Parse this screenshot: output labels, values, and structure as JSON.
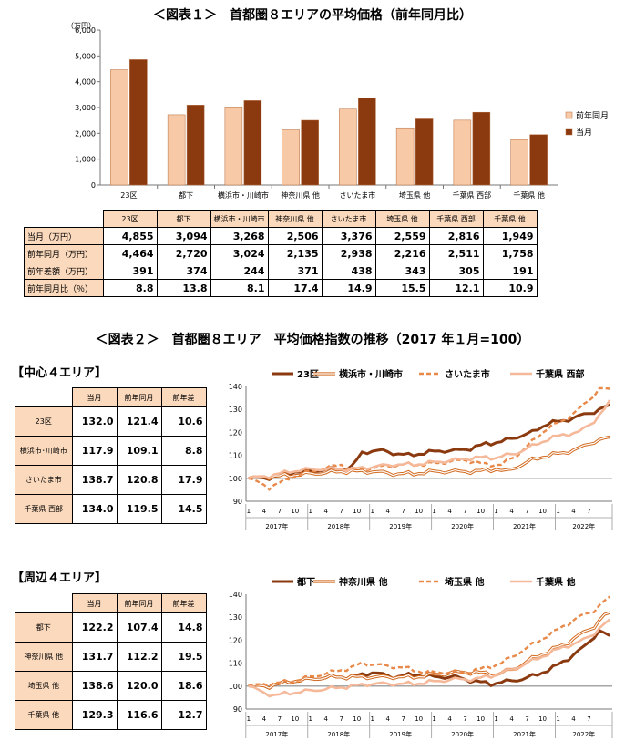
{
  "fig1": {
    "title": "＜図表１＞　首都圏８エリアの平均価格（前年同月比）",
    "table_rows": [
      {
        "label": "当月（万円）",
        "values": [
          "4,855",
          "3,094",
          "3,268",
          "2,506",
          "3,376",
          "2,559",
          "2,816",
          "1,949"
        ]
      },
      {
        "label": "前年同月（万円）",
        "values": [
          "4,464",
          "2,720",
          "3,024",
          "2,135",
          "2,938",
          "2,216",
          "2,511",
          "1,758"
        ]
      },
      {
        "label": "前年差額（万円）",
        "values": [
          "391",
          "374",
          "244",
          "371",
          "438",
          "343",
          "305",
          "191"
        ]
      },
      {
        "label": "前年同月比（％）",
        "values": [
          "8.8",
          "13.8",
          "8.1",
          "17.4",
          "14.9",
          "15.5",
          "12.1",
          "10.9"
        ]
      }
    ]
  },
  "fig2": {
    "title": "＜図表２＞　首都圏８エリア　平均価格指数の推移（2017 年１月=100）",
    "central_heading": "【中心４エリア】",
    "peripheral_heading": "【周辺４エリア】",
    "table_headers": [
      "当月",
      "前年同月",
      "前年差"
    ],
    "central_rows": [
      {
        "label": "23区",
        "values": [
          "132.0",
          "121.4",
          "10.6"
        ]
      },
      {
        "label": "横浜市･川崎市",
        "values": [
          "117.9",
          "109.1",
          "8.8"
        ]
      },
      {
        "label": "さいたま市",
        "values": [
          "138.7",
          "120.8",
          "17.9"
        ]
      },
      {
        "label": "千葉県 西部",
        "values": [
          "134.0",
          "119.5",
          "14.5"
        ]
      }
    ],
    "peripheral_rows": [
      {
        "label": "都下",
        "values": [
          "122.2",
          "107.4",
          "14.8"
        ]
      },
      {
        "label": "神奈川県 他",
        "values": [
          "131.7",
          "112.2",
          "19.5"
        ]
      },
      {
        "label": "埼玉県 他",
        "values": [
          "138.6",
          "120.0",
          "18.6"
        ]
      },
      {
        "label": "千葉県 他",
        "values": [
          "129.3",
          "116.6",
          "12.7"
        ]
      }
    ]
  },
  "chart_data": [
    {
      "type": "bar",
      "ylabel": "（万円）",
      "ylim": [
        0,
        6000
      ],
      "yticks": [
        "0",
        "1,000",
        "2,000",
        "3,000",
        "4,000",
        "5,000",
        "6,000"
      ],
      "categories": [
        "23区",
        "都下",
        "横浜市・川崎市",
        "神奈川県 他",
        "さいたま市",
        "埼玉県 他",
        "千葉県 西部",
        "千葉県 他"
      ],
      "series": [
        {
          "name": "前年同月",
          "color": "#f8c9a6",
          "values": [
            4464,
            2720,
            3024,
            2135,
            2938,
            2216,
            2511,
            1758
          ]
        },
        {
          "name": "当月",
          "color": "#8b3a10",
          "values": [
            4855,
            3094,
            3268,
            2506,
            3376,
            2559,
            2816,
            1949
          ]
        }
      ],
      "legend": "right"
    },
    {
      "type": "line",
      "ylim": [
        90,
        140
      ],
      "yticks": [
        "90",
        "100",
        "110",
        "120",
        "130",
        "140"
      ],
      "month_ticks": [
        "1",
        "4",
        "7",
        "10",
        "1",
        "4",
        "7",
        "10",
        "1",
        "4",
        "7",
        "10",
        "1",
        "4",
        "7",
        "10",
        "1",
        "4",
        "7",
        "10",
        "1",
        "4",
        "7"
      ],
      "year_labels": [
        "2017年",
        "2018年",
        "2019年",
        "2020年",
        "2021年",
        "2022年"
      ],
      "legend": "top",
      "series": [
        {
          "name": "23区",
          "color": "#8b3a10",
          "style": "thick",
          "anchors": [
            [
              0,
              100
            ],
            [
              3,
              100
            ],
            [
              6,
              101
            ],
            [
              9,
              103
            ],
            [
              12,
              103
            ],
            [
              15,
              104
            ],
            [
              18,
              104
            ],
            [
              20,
              105
            ],
            [
              22,
              111
            ],
            [
              24,
              112
            ],
            [
              26,
              112
            ],
            [
              28,
              111
            ],
            [
              31,
              110
            ],
            [
              34,
              111
            ],
            [
              37,
              112
            ],
            [
              40,
              112
            ],
            [
              43,
              113
            ],
            [
              46,
              115
            ],
            [
              49,
              116
            ],
            [
              52,
              118
            ],
            [
              55,
              120
            ],
            [
              58,
              124
            ],
            [
              61,
              125
            ],
            [
              64,
              127
            ],
            [
              67,
              129
            ],
            [
              69,
              131
            ],
            [
              70,
              132
            ]
          ]
        },
        {
          "name": "横浜市・川崎市",
          "color": "#d2691e",
          "style": "double",
          "anchors": [
            [
              0,
              100
            ],
            [
              6,
              101
            ],
            [
              12,
              102
            ],
            [
              18,
              103
            ],
            [
              24,
              103
            ],
            [
              28,
              102
            ],
            [
              32,
              102
            ],
            [
              36,
              103
            ],
            [
              40,
              103
            ],
            [
              44,
              103
            ],
            [
              48,
              104
            ],
            [
              50,
              103
            ],
            [
              52,
              105
            ],
            [
              55,
              108
            ],
            [
              58,
              110
            ],
            [
              61,
              111
            ],
            [
              64,
              113
            ],
            [
              67,
              116
            ],
            [
              70,
              118
            ]
          ]
        },
        {
          "name": "さいたま市",
          "color": "#e8894a",
          "style": "dashed",
          "anchors": [
            [
              0,
              100
            ],
            [
              2,
              98
            ],
            [
              4,
              96
            ],
            [
              7,
              99
            ],
            [
              10,
              102
            ],
            [
              14,
              104
            ],
            [
              18,
              106
            ],
            [
              20,
              104
            ],
            [
              22,
              104
            ],
            [
              26,
              105
            ],
            [
              30,
              106
            ],
            [
              34,
              106
            ],
            [
              38,
              107
            ],
            [
              42,
              108
            ],
            [
              46,
              106
            ],
            [
              49,
              106
            ],
            [
              52,
              110
            ],
            [
              55,
              116
            ],
            [
              58,
              122
            ],
            [
              61,
              125
            ],
            [
              64,
              130
            ],
            [
              66,
              134
            ],
            [
              68,
              139
            ],
            [
              70,
              139
            ]
          ]
        },
        {
          "name": "千葉県 西部",
          "color": "#f5b99a",
          "style": "light",
          "anchors": [
            [
              0,
              100
            ],
            [
              4,
              101
            ],
            [
              8,
              103
            ],
            [
              12,
              104
            ],
            [
              16,
              104
            ],
            [
              20,
              104
            ],
            [
              24,
              105
            ],
            [
              28,
              106
            ],
            [
              32,
              106
            ],
            [
              36,
              107
            ],
            [
              40,
              108
            ],
            [
              44,
              109
            ],
            [
              48,
              109
            ],
            [
              52,
              111
            ],
            [
              55,
              114
            ],
            [
              58,
              117
            ],
            [
              61,
              119
            ],
            [
              64,
              120
            ],
            [
              67,
              125
            ],
            [
              69,
              130
            ],
            [
              70,
              134
            ]
          ]
        }
      ]
    },
    {
      "type": "line",
      "ylim": [
        90,
        140
      ],
      "yticks": [
        "90",
        "100",
        "110",
        "120",
        "130",
        "140"
      ],
      "month_ticks": [
        "1",
        "4",
        "7",
        "10",
        "1",
        "4",
        "7",
        "10",
        "1",
        "4",
        "7",
        "10",
        "1",
        "4",
        "7",
        "10",
        "1",
        "4",
        "7",
        "10",
        "1",
        "4",
        "7"
      ],
      "year_labels": [
        "2017年",
        "2018年",
        "2019年",
        "2020年",
        "2021年",
        "2022年"
      ],
      "legend": "top",
      "series": [
        {
          "name": "都下",
          "color": "#8b3a10",
          "style": "thick",
          "anchors": [
            [
              0,
              100
            ],
            [
              4,
              100
            ],
            [
              8,
              102
            ],
            [
              12,
              103
            ],
            [
              16,
              104
            ],
            [
              20,
              104
            ],
            [
              24,
              106
            ],
            [
              28,
              104
            ],
            [
              32,
              105
            ],
            [
              36,
              104
            ],
            [
              40,
              104
            ],
            [
              44,
              102
            ],
            [
              47,
              101
            ],
            [
              50,
              102
            ],
            [
              53,
              103
            ],
            [
              56,
              105
            ],
            [
              59,
              108
            ],
            [
              62,
              112
            ],
            [
              65,
              117
            ],
            [
              68,
              124
            ],
            [
              69,
              123
            ],
            [
              70,
              122
            ]
          ]
        },
        {
          "name": "神奈川県 他",
          "color": "#d2691e",
          "style": "double",
          "anchors": [
            [
              0,
              100
            ],
            [
              4,
              100
            ],
            [
              8,
              102
            ],
            [
              12,
              103
            ],
            [
              16,
              104
            ],
            [
              20,
              104
            ],
            [
              24,
              104
            ],
            [
              28,
              104
            ],
            [
              32,
              104
            ],
            [
              36,
              105
            ],
            [
              40,
              106
            ],
            [
              44,
              106
            ],
            [
              48,
              105
            ],
            [
              52,
              108
            ],
            [
              55,
              112
            ],
            [
              58,
              115
            ],
            [
              61,
              118
            ],
            [
              64,
              122
            ],
            [
              67,
              126
            ],
            [
              69,
              131
            ],
            [
              70,
              132
            ]
          ]
        },
        {
          "name": "埼玉県 他",
          "color": "#e8894a",
          "style": "dashed",
          "anchors": [
            [
              0,
              100
            ],
            [
              4,
              101
            ],
            [
              8,
              102
            ],
            [
              12,
              104
            ],
            [
              16,
              106
            ],
            [
              20,
              108
            ],
            [
              22,
              110
            ],
            [
              26,
              109
            ],
            [
              30,
              108
            ],
            [
              34,
              106
            ],
            [
              38,
              106
            ],
            [
              42,
              106
            ],
            [
              46,
              108
            ],
            [
              49,
              110
            ],
            [
              52,
              114
            ],
            [
              55,
              118
            ],
            [
              58,
              122
            ],
            [
              61,
              126
            ],
            [
              64,
              130
            ],
            [
              67,
              133
            ],
            [
              69,
              137
            ],
            [
              70,
              139
            ]
          ]
        },
        {
          "name": "千葉県 他",
          "color": "#f5b99a",
          "style": "light",
          "anchors": [
            [
              0,
              100
            ],
            [
              3,
              97
            ],
            [
              5,
              96
            ],
            [
              8,
              97
            ],
            [
              12,
              98
            ],
            [
              16,
              99
            ],
            [
              20,
              100
            ],
            [
              24,
              101
            ],
            [
              28,
              101
            ],
            [
              32,
              101
            ],
            [
              36,
              102
            ],
            [
              40,
              103
            ],
            [
              44,
              103
            ],
            [
              48,
              105
            ],
            [
              52,
              108
            ],
            [
              55,
              111
            ],
            [
              58,
              114
            ],
            [
              61,
              117
            ],
            [
              64,
              119
            ],
            [
              67,
              123
            ],
            [
              69,
              127
            ],
            [
              70,
              129
            ]
          ]
        }
      ]
    }
  ]
}
